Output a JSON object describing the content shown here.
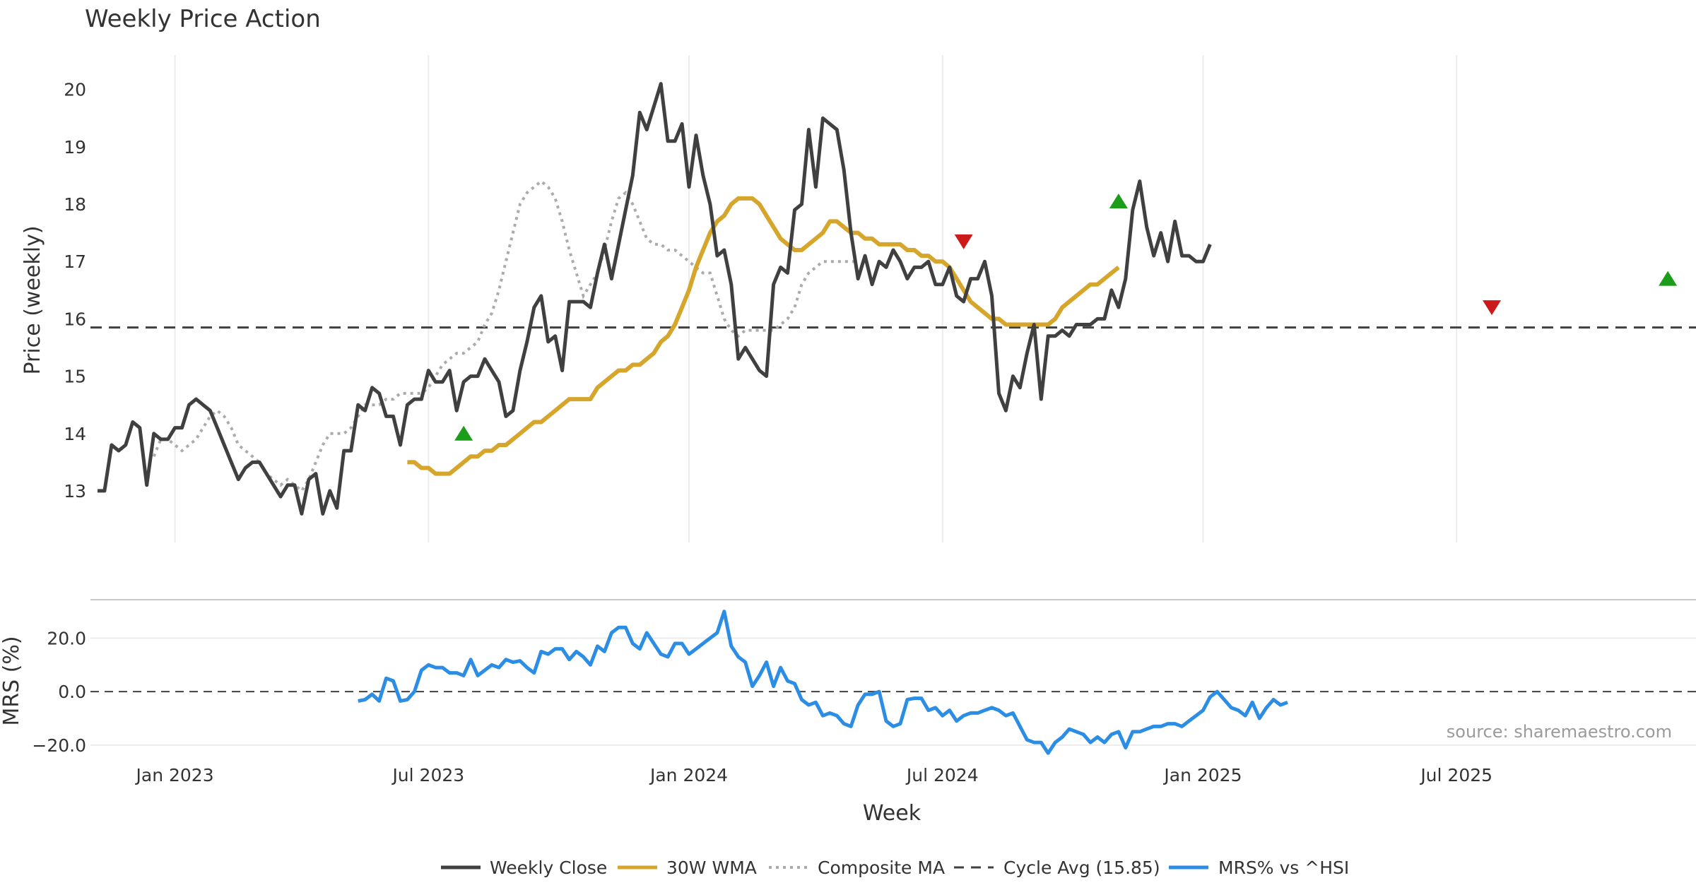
{
  "chart_data": {
    "type": "line",
    "title": "Weekly Price Action",
    "source": "source: sharemaestro.com",
    "colors": {
      "close": "#404040",
      "wma": "#d6a52c",
      "composite": "#ababab",
      "cycle": "#404040",
      "mrs": "#2b8de3",
      "buy": "#1a9e1a",
      "sell": "#cc1a1a"
    },
    "price_panel": {
      "ylabel": "Price (weekly)",
      "ylim": [
        12.1,
        20.6
      ],
      "yticks": [
        "13",
        "14",
        "15",
        "16",
        "17",
        "18",
        "19",
        "20"
      ],
      "cycle_avg": 15.85
    },
    "mrs_panel": {
      "ylabel": "MRS (%)",
      "ylim": [
        -24,
        32
      ],
      "yticks": [
        "20.0",
        "0.0",
        "−20.0"
      ],
      "zero_line": 0
    },
    "x_axis": {
      "label": "Week",
      "ticks": [
        "Jan 2023",
        "Jul 2023",
        "Jan 2024",
        "Jul 2024",
        "Jan 2025",
        "Jul 2025"
      ],
      "tick_weeks": [
        8,
        44,
        81,
        117,
        154,
        190
      ],
      "week_range": [
        -4,
        224
      ]
    },
    "legend": [
      "Weekly Close",
      "30W WMA",
      "Composite MA",
      "Cycle Avg (15.85)",
      "MRS% vs ^HSI"
    ],
    "series": {
      "close": [
        13.0,
        13.0,
        13.8,
        13.7,
        13.8,
        14.2,
        14.1,
        13.1,
        14.0,
        13.9,
        13.9,
        14.1,
        14.1,
        14.5,
        14.6,
        14.5,
        14.4,
        14.1,
        13.8,
        13.5,
        13.2,
        13.4,
        13.5,
        13.5,
        13.3,
        13.1,
        12.9,
        13.1,
        13.1,
        12.6,
        13.2,
        13.3,
        12.6,
        13.0,
        12.7,
        13.7,
        13.7,
        14.5,
        14.4,
        14.8,
        14.7,
        14.3,
        14.3,
        13.8,
        14.5,
        14.6,
        14.6,
        15.1,
        14.9,
        14.9,
        15.1,
        14.4,
        14.9,
        15.0,
        15.0,
        15.3,
        15.1,
        14.9,
        14.3,
        14.4,
        15.1,
        15.6,
        16.2,
        16.4,
        15.6,
        15.7,
        15.1,
        16.3,
        16.3,
        16.3,
        16.2,
        16.8,
        17.3,
        16.7,
        17.3,
        17.9,
        18.5,
        19.6,
        19.3,
        19.7,
        20.1,
        19.1,
        19.1,
        19.4,
        18.3,
        19.2,
        18.5,
        18.0,
        17.1,
        17.2,
        16.6,
        15.3,
        15.5,
        15.3,
        15.1,
        15.0,
        16.6,
        16.9,
        16.8,
        17.9,
        18.0,
        19.3,
        18.3,
        19.5,
        19.4,
        19.3,
        18.6,
        17.5,
        16.7,
        17.1,
        16.6,
        17.0,
        16.9,
        17.2,
        17.0,
        16.7,
        16.9,
        16.9,
        17.0,
        16.6,
        16.6,
        16.9,
        16.4,
        16.3,
        16.7,
        16.7,
        17.0,
        16.4,
        14.7,
        14.4,
        15.0,
        14.8,
        15.4,
        15.9,
        14.6,
        15.7,
        15.7,
        15.8,
        15.7,
        15.9,
        15.9,
        15.9,
        16.0,
        16.0,
        16.5,
        16.2,
        16.7,
        17.9,
        18.4,
        17.6,
        17.1,
        17.5,
        17.0,
        17.7,
        17.1,
        17.1,
        17.0,
        17.0,
        17.3
      ],
      "wma": [
        13.5,
        13.5,
        13.4,
        13.4,
        13.3,
        13.3,
        13.3,
        13.4,
        13.5,
        13.6,
        13.6,
        13.7,
        13.7,
        13.8,
        13.8,
        13.9,
        14.0,
        14.1,
        14.2,
        14.2,
        14.3,
        14.4,
        14.5,
        14.6,
        14.6,
        14.6,
        14.6,
        14.8,
        14.9,
        15.0,
        15.1,
        15.1,
        15.2,
        15.2,
        15.3,
        15.4,
        15.6,
        15.7,
        15.9,
        16.2,
        16.5,
        16.9,
        17.2,
        17.5,
        17.7,
        17.8,
        18.0,
        18.1,
        18.1,
        18.1,
        18.0,
        17.8,
        17.6,
        17.4,
        17.3,
        17.2,
        17.2,
        17.3,
        17.4,
        17.5,
        17.7,
        17.7,
        17.6,
        17.5,
        17.5,
        17.4,
        17.4,
        17.3,
        17.3,
        17.3,
        17.3,
        17.2,
        17.2,
        17.1,
        17.1,
        17.0,
        17.0,
        16.9,
        16.7,
        16.5,
        16.3,
        16.2,
        16.1,
        16.0,
        16.0,
        15.9,
        15.9,
        15.9,
        15.9,
        15.9,
        15.9,
        15.9,
        16.0,
        16.2,
        16.3,
        16.4,
        16.5,
        16.6,
        16.6,
        16.7,
        16.8,
        16.9
      ],
      "composite": [
        13.6,
        13.9,
        13.9,
        13.8,
        13.7,
        13.8,
        13.9,
        14.1,
        14.3,
        14.4,
        14.3,
        14.1,
        13.8,
        13.7,
        13.6,
        13.5,
        13.3,
        13.2,
        13.1,
        13.2,
        13.1,
        13.0,
        13.2,
        13.5,
        13.8,
        14.0,
        14.0,
        14.0,
        14.1,
        14.3,
        14.5,
        14.5,
        14.5,
        14.6,
        14.6,
        14.7,
        14.7,
        14.7,
        14.7,
        14.8,
        15.0,
        15.2,
        15.3,
        15.4,
        15.4,
        15.5,
        15.6,
        15.9,
        16.1,
        16.5,
        17.0,
        17.5,
        18.0,
        18.2,
        18.3,
        18.4,
        18.3,
        18.1,
        17.7,
        17.2,
        16.8,
        16.4,
        16.6,
        16.8,
        17.2,
        17.7,
        18.1,
        18.2,
        18.0,
        17.7,
        17.4,
        17.3,
        17.3,
        17.2,
        17.2,
        17.1,
        17.0,
        16.9,
        16.8,
        16.8,
        16.4,
        16.0,
        15.8,
        15.7,
        15.8,
        15.8,
        15.8,
        15.8,
        15.8,
        15.9,
        16.0,
        16.2,
        16.6,
        16.8,
        16.9,
        17.0,
        17.0,
        17.0,
        17.0,
        17.0,
        17.0
      ],
      "mrs": [
        -3.5,
        -3.0,
        -1.0,
        -3.5,
        5.0,
        4.0,
        -3.5,
        -3.0,
        0.0,
        8.0,
        10.0,
        9.0,
        9.0,
        7.0,
        7.0,
        6.0,
        12.0,
        6.0,
        8.0,
        10.0,
        9.0,
        12.0,
        11.0,
        11.5,
        9.0,
        7.0,
        15.0,
        14.0,
        16.0,
        16.0,
        12.0,
        15.0,
        13.0,
        10.0,
        17.0,
        15.0,
        22.0,
        24.0,
        24.0,
        18.0,
        16.0,
        22.0,
        18.0,
        14.0,
        13.0,
        18.0,
        18.0,
        14.0,
        16.0,
        18.0,
        20.0,
        22.0,
        30.0,
        17.0,
        13.0,
        11.0,
        2.0,
        6.0,
        11.0,
        2.0,
        9.0,
        4.0,
        3.0,
        -3.0,
        -5.0,
        -4.0,
        -9.0,
        -8.0,
        -9.0,
        -12.0,
        -13.0,
        -5.0,
        -1.0,
        -1.0,
        0.0,
        -11.0,
        -13.0,
        -12.0,
        -3.0,
        -2.5,
        -2.5,
        -7.0,
        -6.0,
        -9.0,
        -7.0,
        -11.0,
        -9.0,
        -8.0,
        -8.0,
        -7.0,
        -6.0,
        -7.0,
        -9.0,
        -8.0,
        -13.0,
        -18.0,
        -19.0,
        -19.0,
        -23.0,
        -19.0,
        -17.0,
        -14.0,
        -15.0,
        -16.0,
        -19.0,
        -17.0,
        -19.0,
        -16.0,
        -15.0,
        -21.0,
        -15.0,
        -15.0,
        -14.0,
        -13.0,
        -13.0,
        -12.0,
        -12.0,
        -13.0,
        -11.0,
        -9.0,
        -7.0,
        -2.0,
        0.0,
        -3.0,
        -6.0,
        -7.0,
        -9.0,
        -4.0,
        -10.0,
        -6.0,
        -3.0,
        -5.0,
        -4.0
      ]
    },
    "signals": [
      {
        "type": "buy",
        "week": 49,
        "value": 14.0
      },
      {
        "type": "sell",
        "week": 120,
        "value": 17.35
      },
      {
        "type": "buy",
        "week": 142,
        "value": 18.05
      },
      {
        "type": "sell",
        "week": 195,
        "value": 16.2
      },
      {
        "type": "buy",
        "week": 220,
        "value": 16.7
      }
    ]
  }
}
